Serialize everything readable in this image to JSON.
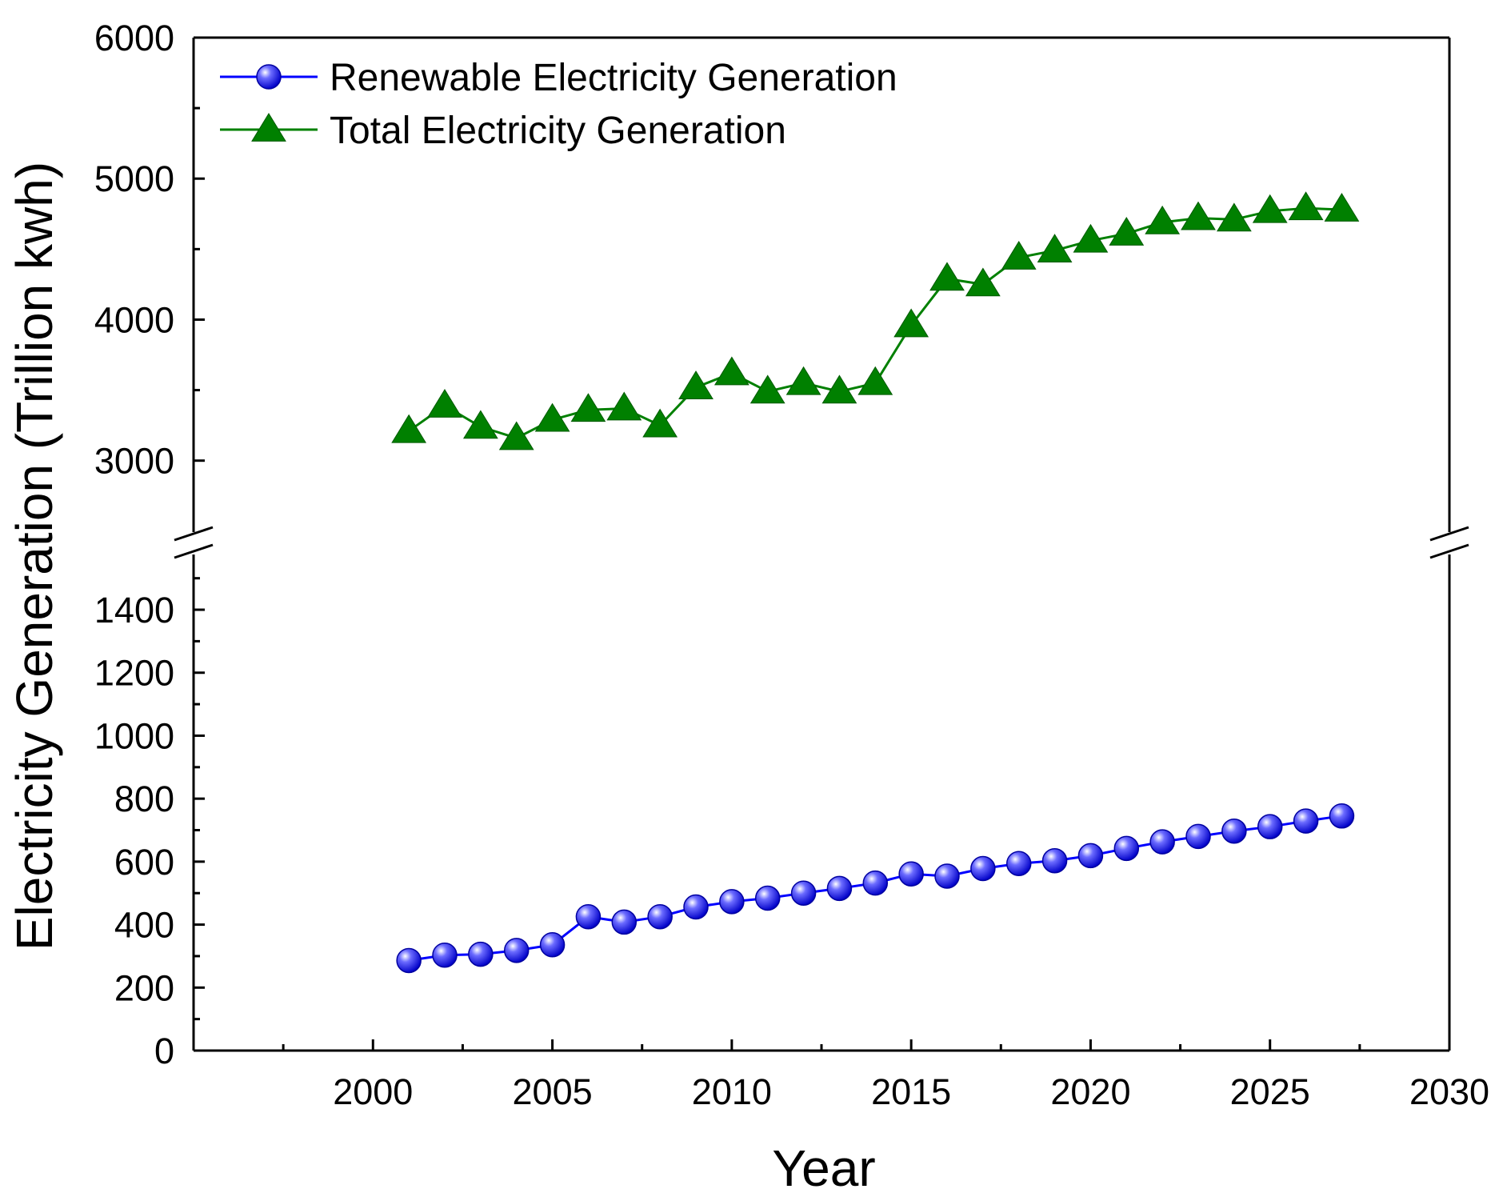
{
  "chart_data": {
    "type": "line",
    "xlabel": "Year",
    "ylabel": "Electricity Generation (Trillion kwh)",
    "xlim": [
      1995,
      2030
    ],
    "x_ticks": [
      2000,
      2005,
      2010,
      2015,
      2020,
      2025,
      2030
    ],
    "x_tick_labels": [
      "2000",
      "2005",
      "2010",
      "2015",
      "2020",
      "2025",
      "2030"
    ],
    "y_axis_break": true,
    "ylim_lower": [
      0,
      1550
    ],
    "ylim_upper": [
      2550,
      6000
    ],
    "y_ticks_lower": [
      0,
      200,
      400,
      600,
      800,
      1000,
      1200,
      1400
    ],
    "y_tick_labels_lower": [
      "0",
      "200",
      "400",
      "600",
      "800",
      "1000",
      "1200",
      "1400"
    ],
    "y_ticks_upper": [
      3000,
      4000,
      5000,
      6000
    ],
    "y_tick_labels_upper": [
      "3000",
      "4000",
      "5000",
      "6000"
    ],
    "x": [
      2001,
      2002,
      2003,
      2004,
      2005,
      2006,
      2007,
      2008,
      2009,
      2010,
      2011,
      2012,
      2013,
      2014,
      2015,
      2016,
      2017,
      2018,
      2019,
      2020,
      2021,
      2022,
      2023,
      2024,
      2025,
      2026,
      2027
    ],
    "series": [
      {
        "name": "Renewable Electricity Generation",
        "color": "#0000FF",
        "marker": "sphere",
        "values": [
          286,
          303,
          306,
          318,
          336,
          425,
          408,
          425,
          456,
          473,
          484,
          500,
          515,
          532,
          561,
          554,
          578,
          594,
          603,
          619,
          642,
          663,
          680,
          697,
          711,
          729,
          745
        ]
      },
      {
        "name": "Total Electricity Generation",
        "color": "#008000",
        "marker": "triangle",
        "values": [
          3210,
          3390,
          3240,
          3160,
          3290,
          3360,
          3370,
          3250,
          3520,
          3620,
          3490,
          3550,
          3490,
          3550,
          3960,
          4290,
          4250,
          4440,
          4490,
          4560,
          4610,
          4690,
          4720,
          4710,
          4770,
          4790,
          4780
        ]
      }
    ]
  }
}
